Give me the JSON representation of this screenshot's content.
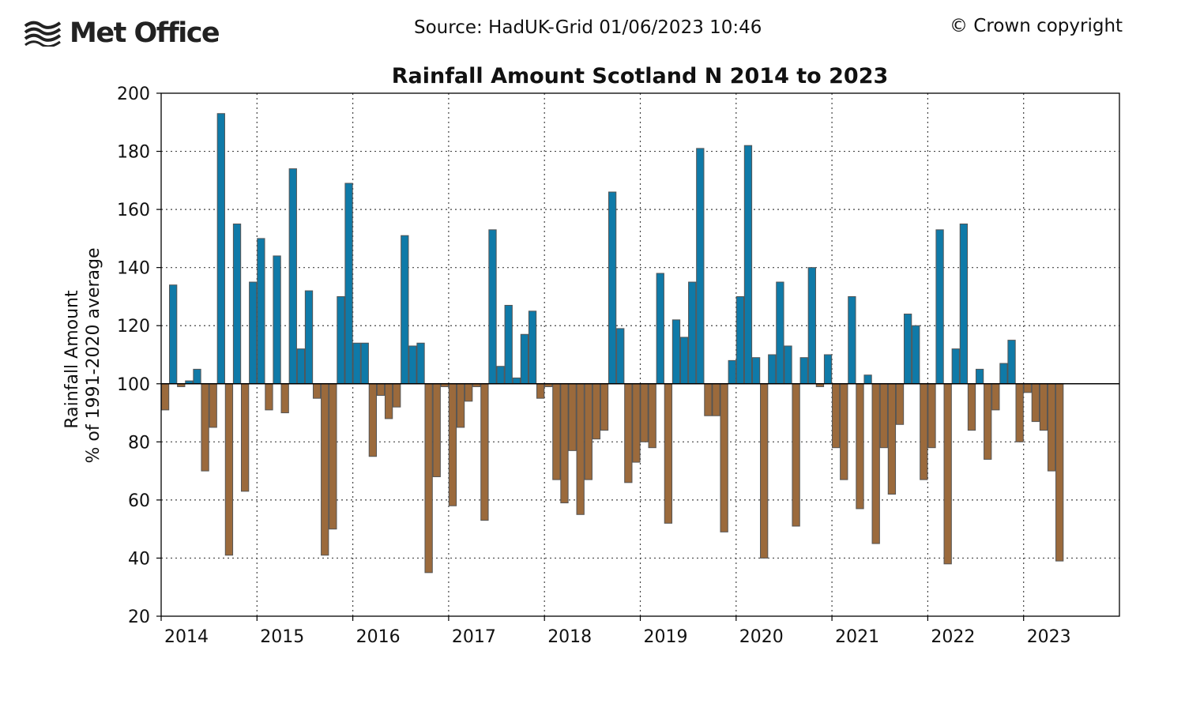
{
  "header": {
    "logo_text": "Met Office",
    "source": "Source: HadUK-Grid 01/06/2023 10:46",
    "copyright": "© Crown copyright"
  },
  "colors": {
    "above_average": "#0f7aa8",
    "below_average": "#9b6a3c",
    "bar_edge": "#555555",
    "baseline": "#000000"
  },
  "chart_data": {
    "type": "bar",
    "title": "Rainfall Amount Scotland N 2014 to 2023",
    "ylabel_line1": "Rainfall Amount",
    "ylabel_line2": "% of 1991-2020 average",
    "ylim": [
      20,
      200
    ],
    "yticks": [
      20,
      40,
      60,
      80,
      100,
      120,
      140,
      160,
      180,
      200
    ],
    "baseline": 100,
    "grid": true,
    "x_tick_labels": [
      "2014",
      "2015",
      "2016",
      "2017",
      "2018",
      "2019",
      "2020",
      "2021",
      "2022",
      "2023"
    ],
    "x_range_months": [
      0,
      120
    ],
    "start": "2014-01",
    "end": "2023-05",
    "values": [
      91,
      134,
      99,
      101,
      105,
      70,
      85,
      193,
      41,
      155,
      63,
      135,
      150,
      91,
      144,
      90,
      174,
      112,
      132,
      95,
      41,
      50,
      130,
      169,
      114,
      114,
      75,
      96,
      88,
      92,
      151,
      113,
      114,
      35,
      68,
      99,
      58,
      85,
      94,
      99,
      53,
      153,
      106,
      127,
      102,
      117,
      125,
      95,
      99,
      67,
      59,
      77,
      55,
      67,
      81,
      84,
      166,
      119,
      66,
      73,
      80,
      78,
      138,
      52,
      122,
      116,
      135,
      181,
      89,
      89,
      49,
      108,
      130,
      182,
      109,
      40,
      110,
      135,
      113,
      51,
      109,
      140,
      99,
      110,
      78,
      67,
      130,
      57,
      103,
      45,
      78,
      62,
      86,
      124,
      120,
      67,
      78,
      153,
      38,
      112,
      155,
      84,
      105,
      74,
      91,
      107,
      115,
      80,
      97,
      87,
      84,
      70,
      39
    ]
  }
}
